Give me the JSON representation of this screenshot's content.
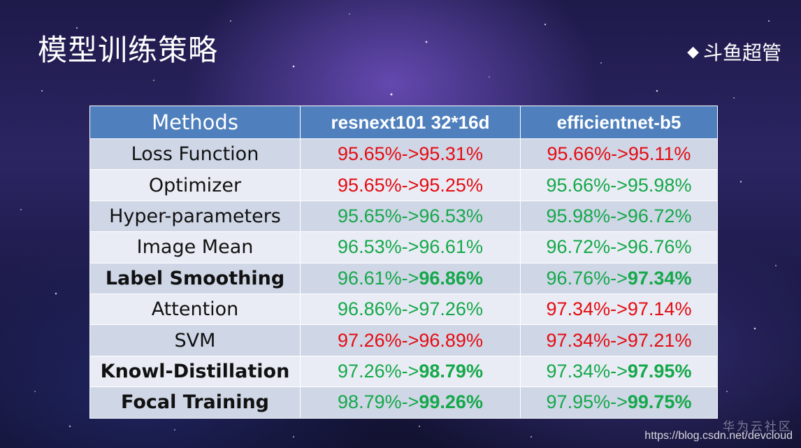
{
  "slide": {
    "title": "模型训练策略",
    "brand": "斗鱼超管",
    "brand_icon": "diamond-bullet-icon"
  },
  "table": {
    "headers": [
      "Methods",
      "resnext101 32*16d",
      "efficientnet-b5"
    ],
    "rows": [
      {
        "method": "Loss Function",
        "bold": false,
        "c1": {
          "before": "95.65%->",
          "after": "95.31%",
          "color": "red",
          "strong": false
        },
        "c2": {
          "before": "95.66%->",
          "after": "95.11%",
          "color": "red",
          "strong": false
        }
      },
      {
        "method": "Optimizer",
        "bold": false,
        "c1": {
          "before": "95.65%->",
          "after": "95.25%",
          "color": "red",
          "strong": false
        },
        "c2": {
          "before": "95.66%->",
          "after": "95.98%",
          "color": "green",
          "strong": false
        }
      },
      {
        "method": "Hyper-parameters",
        "bold": false,
        "c1": {
          "before": "95.65%->",
          "after": "96.53%",
          "color": "green",
          "strong": false
        },
        "c2": {
          "before": "95.98%->",
          "after": "96.72%",
          "color": "green",
          "strong": false
        }
      },
      {
        "method": "Image Mean",
        "bold": false,
        "c1": {
          "before": "96.53%->",
          "after": "96.61%",
          "color": "green",
          "strong": false
        },
        "c2": {
          "before": "96.72%->",
          "after": "96.76%",
          "color": "green",
          "strong": false
        }
      },
      {
        "method": "Label Smoothing",
        "bold": true,
        "c1": {
          "before": "96.61%->",
          "after": "96.86%",
          "color": "green",
          "strong": true
        },
        "c2": {
          "before": "96.76%->",
          "after": "97.34%",
          "color": "green",
          "strong": true
        }
      },
      {
        "method": "Attention",
        "bold": false,
        "c1": {
          "before": "96.86%->",
          "after": "97.26%",
          "color": "green",
          "strong": false
        },
        "c2": {
          "before": "97.34%->",
          "after": "97.14%",
          "color": "red",
          "strong": false
        }
      },
      {
        "method": "SVM",
        "bold": false,
        "c1": {
          "before": "97.26%->",
          "after": "96.89%",
          "color": "red",
          "strong": false
        },
        "c2": {
          "before": "97.34%->",
          "after": "97.21%",
          "color": "red",
          "strong": false
        }
      },
      {
        "method": "Knowl-Distillation",
        "bold": true,
        "c1": {
          "before": "97.26%->",
          "after": "98.79%",
          "color": "green",
          "strong": true
        },
        "c2": {
          "before": "97.34%->",
          "after": "97.95%",
          "color": "green",
          "strong": true
        }
      },
      {
        "method": "Focal Training",
        "bold": true,
        "c1": {
          "before": "98.79%->",
          "after": "99.26%",
          "color": "green",
          "strong": true
        },
        "c2": {
          "before": "97.95%->",
          "after": "99.75%",
          "color": "green",
          "strong": true
        }
      }
    ]
  },
  "watermark": {
    "logo_text": "华为云社区",
    "url": "https://blog.csdn.net/devcloud"
  },
  "colors": {
    "header_bg": "#4f80bd",
    "row_odd_bg": "#cfd6e6",
    "row_even_bg": "#e9ecf4",
    "decrease": "#e40c12",
    "increase": "#15a84a"
  }
}
